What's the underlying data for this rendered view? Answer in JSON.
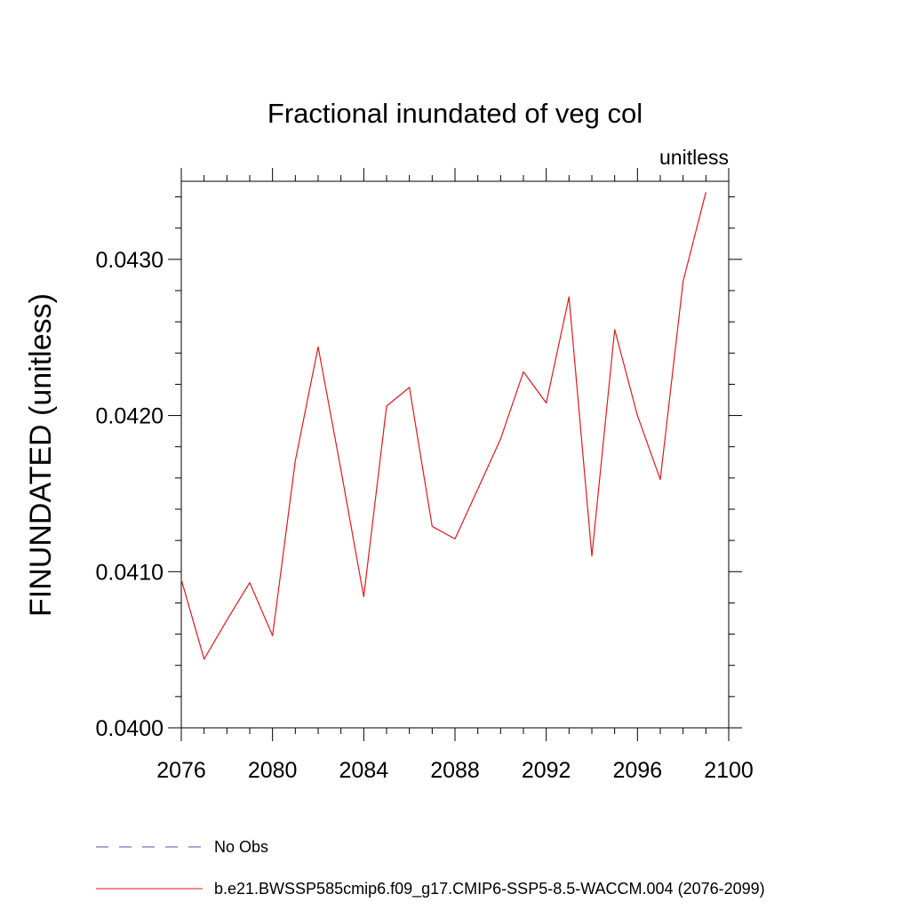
{
  "chart_data": {
    "type": "line",
    "title": "Fractional inundated of veg col",
    "units_label": "unitless",
    "xlabel": "",
    "ylabel": "FINUNDATED  (unitless)",
    "xlim": [
      2076,
      2100
    ],
    "ylim": [
      0.04,
      0.0435
    ],
    "x_ticks": [
      2076,
      2080,
      2084,
      2088,
      2092,
      2096,
      2100
    ],
    "x_tick_labels": [
      "2076",
      "2080",
      "2084",
      "2088",
      "2092",
      "2096",
      "2100"
    ],
    "y_ticks": [
      0.04,
      0.041,
      0.042,
      0.043
    ],
    "y_tick_labels": [
      "0.0400",
      "0.0410",
      "0.0420",
      "0.0430"
    ],
    "grid": false,
    "legend_position": "bottom",
    "series": [
      {
        "name": "b.e21.BWSSP585cmip6.f09_g17.CMIP6-SSP5-8.5-WACCM.004 (2076-2099)",
        "color": "#e8161b",
        "style": "solid",
        "x": [
          2076,
          2077,
          2078,
          2079,
          2080,
          2081,
          2082,
          2083,
          2084,
          2085,
          2086,
          2087,
          2088,
          2089,
          2090,
          2091,
          2092,
          2093,
          2094,
          2095,
          2096,
          2097,
          2098,
          2099
        ],
        "y": [
          0.04095,
          0.04044,
          0.04069,
          0.04093,
          0.04059,
          0.04171,
          0.04244,
          0.04165,
          0.04084,
          0.04206,
          0.04218,
          0.04129,
          0.04121,
          0.04153,
          0.04185,
          0.04228,
          0.04208,
          0.04276,
          0.0411,
          0.04255,
          0.042,
          0.04159,
          0.04286,
          0.04343
        ]
      }
    ],
    "legend": [
      {
        "label": "No Obs",
        "color": "#5a4bb0",
        "style": "dashed"
      },
      {
        "label": "b.e21.BWSSP585cmip6.f09_g17.CMIP6-SSP5-8.5-WACCM.004 (2076-2099)",
        "color": "#e8161b",
        "style": "solid"
      }
    ]
  }
}
